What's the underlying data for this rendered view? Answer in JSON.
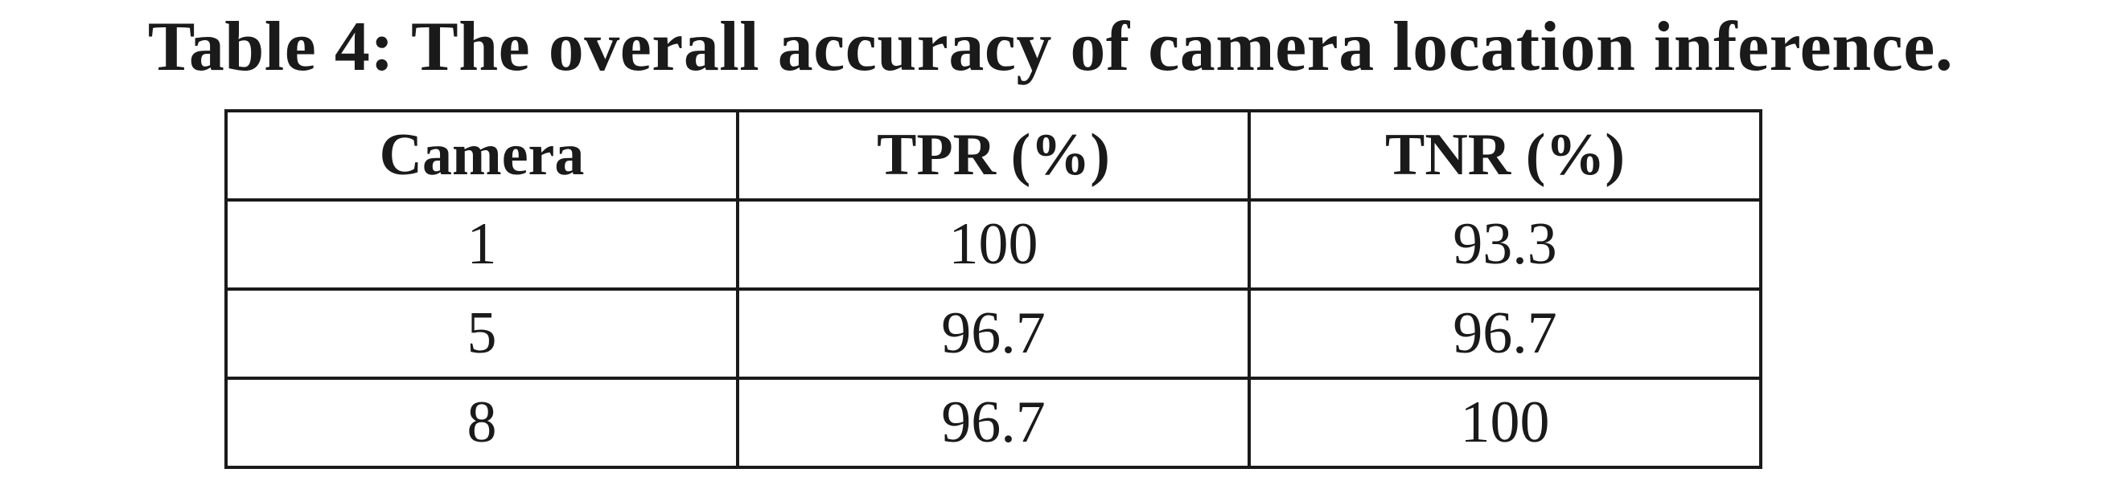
{
  "caption": "Table 4: The overall accuracy of camera location inference.",
  "table": {
    "headers": [
      "Camera",
      "TPR (%)",
      "TNR (%)"
    ],
    "rows": [
      [
        "1",
        "100",
        "93.3"
      ],
      [
        "5",
        "96.7",
        "96.7"
      ],
      [
        "8",
        "96.7",
        "100"
      ]
    ]
  }
}
